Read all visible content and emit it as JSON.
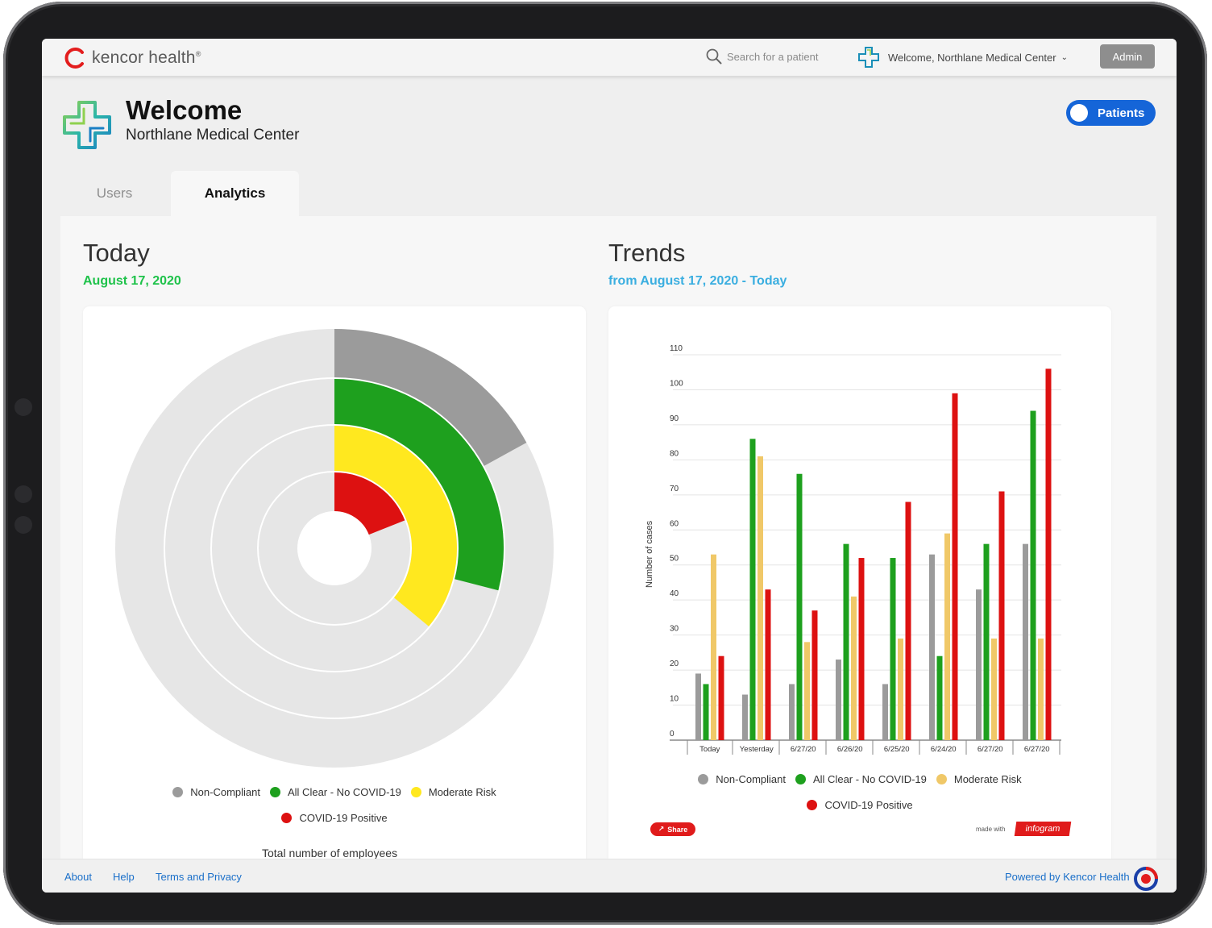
{
  "brand": {
    "name": "kencor health",
    "tm": "®"
  },
  "topbar": {
    "search_placeholder": "Search for a patient",
    "welcome_label": "Welcome, Northlane Medical Center",
    "admin_label": "Admin"
  },
  "header": {
    "title": "Welcome",
    "subtitle": "Northlane Medical Center",
    "patients_label": "Patients"
  },
  "tabs": [
    {
      "label": "Users",
      "active": false
    },
    {
      "label": "Analytics",
      "active": true
    }
  ],
  "today": {
    "title": "Today",
    "date": "August 17, 2020",
    "total_label": "Total number of employees"
  },
  "trends": {
    "title": "Trends",
    "date": "from August 17, 2020 - Today",
    "share_label": "Share",
    "made_with": "made with",
    "infogram_label": "infogram"
  },
  "legend": [
    {
      "label": "Non-Compliant",
      "color": "#9b9b9b"
    },
    {
      "label": "All Clear - No COVID-19",
      "color": "#1ea01e"
    },
    {
      "label": "Moderate Risk",
      "color": "#ffe81f"
    },
    {
      "label": "COVID-19 Positive",
      "color": "#dd1111"
    }
  ],
  "trends_legend": [
    {
      "label": "Non-Compliant",
      "color": "#9b9b9b"
    },
    {
      "label": "All Clear - No COVID-19",
      "color": "#1ea01e"
    },
    {
      "label": "Moderate Risk",
      "color": "#f0c868"
    },
    {
      "label": "COVID-19 Positive",
      "color": "#dd1111"
    }
  ],
  "chart_data": [
    {
      "type": "radial-bar",
      "series": [
        {
          "name": "Non-Compliant",
          "fraction": 0.17,
          "color": "#9b9b9b"
        },
        {
          "name": "All Clear - No COVID-19",
          "fraction": 0.29,
          "color": "#1ea01e"
        },
        {
          "name": "Moderate Risk",
          "fraction": 0.36,
          "color": "#ffe81f"
        },
        {
          "name": "COVID-19 Positive",
          "fraction": 0.19,
          "color": "#dd1111"
        }
      ],
      "legend_position": "bottom"
    },
    {
      "type": "bar",
      "categories": [
        "Today",
        "Yesterday",
        "6/27/20",
        "6/26/20",
        "6/25/20",
        "6/24/20",
        "6/27/20",
        "6/27/20"
      ],
      "series": [
        {
          "name": "Non-Compliant",
          "color": "#9b9b9b",
          "values": [
            19,
            13,
            16,
            23,
            16,
            53,
            43,
            56
          ]
        },
        {
          "name": "All Clear - No COVID-19",
          "color": "#1ea01e",
          "values": [
            16,
            86,
            76,
            56,
            52,
            24,
            56,
            94
          ]
        },
        {
          "name": "Moderate Risk",
          "color": "#f0c868",
          "values": [
            53,
            81,
            28,
            41,
            29,
            59,
            29,
            29
          ]
        },
        {
          "name": "COVID-19 Positive",
          "color": "#dd1111",
          "values": [
            24,
            43,
            37,
            52,
            68,
            99,
            71,
            106
          ]
        }
      ],
      "ylabel": "Number of cases",
      "ylim": [
        0,
        110
      ],
      "yticks": [
        0,
        10,
        20,
        30,
        40,
        50,
        60,
        70,
        80,
        90,
        100,
        110
      ],
      "grid": true,
      "legend_position": "bottom"
    }
  ],
  "footer": {
    "links": [
      "About",
      "Help",
      "Terms and Privacy"
    ],
    "powered": "Powered by Kencor Health"
  }
}
